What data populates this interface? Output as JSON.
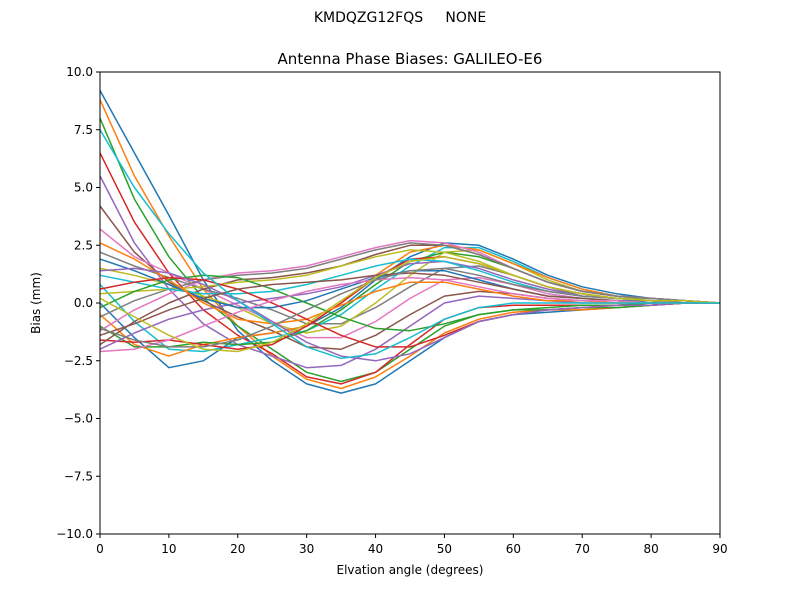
{
  "suptitle": "KMDQZG12FQS     NONE",
  "chart_data": {
    "type": "line",
    "title": "Antenna Phase Biases: GALILEO-E6",
    "xlabel": "Elvation angle (degrees)",
    "ylabel": "Bias (mm)",
    "xlim": [
      0,
      90
    ],
    "ylim": [
      -10,
      10
    ],
    "xticks": [
      0,
      10,
      20,
      30,
      40,
      50,
      60,
      70,
      80,
      90
    ],
    "yticks": [
      -10.0,
      -7.5,
      -5.0,
      -2.5,
      0.0,
      2.5,
      5.0,
      7.5,
      10.0
    ],
    "ytick_labels": [
      "−10.0",
      "−7.5",
      "−5.0",
      "−2.5",
      "0.0",
      "2.5",
      "5.0",
      "7.5",
      "10.0"
    ],
    "grid": false,
    "colors": [
      "#1f77b4",
      "#ff7f0e",
      "#2ca02c",
      "#d62728",
      "#9467bd",
      "#8c564b",
      "#e377c2",
      "#7f7f7f",
      "#bcbd22",
      "#17becf"
    ],
    "x": [
      0,
      5,
      10,
      15,
      20,
      25,
      30,
      35,
      40,
      45,
      50,
      55,
      60,
      65,
      70,
      75,
      80,
      85,
      90
    ],
    "series": [
      {
        "values": [
          9.2,
          6.5,
          3.8,
          1.0,
          -1.2,
          -2.5,
          -3.5,
          -3.9,
          -3.5,
          -2.5,
          -1.5,
          -0.8,
          -0.5,
          -0.4,
          -0.3,
          -0.2,
          -0.1,
          0.0,
          0.0
        ]
      },
      {
        "values": [
          8.8,
          5.5,
          2.9,
          0.6,
          -1.0,
          -2.3,
          -3.3,
          -3.7,
          -3.2,
          -2.3,
          -1.3,
          -0.7,
          -0.4,
          -0.3,
          -0.3,
          -0.2,
          -0.1,
          0.0,
          0.0
        ]
      },
      {
        "values": [
          8.0,
          4.5,
          2.0,
          0.2,
          -1.0,
          -2.0,
          -3.0,
          -3.4,
          -3.0,
          -2.0,
          -1.0,
          -0.5,
          -0.3,
          -0.3,
          -0.2,
          -0.2,
          -0.1,
          0.0,
          0.0
        ]
      },
      {
        "values": [
          6.5,
          3.5,
          1.3,
          -0.3,
          -1.4,
          -2.2,
          -3.2,
          -3.5,
          -3.0,
          -1.8,
          -0.7,
          -0.2,
          -0.1,
          -0.1,
          -0.1,
          -0.1,
          0.0,
          0.0,
          0.0
        ]
      },
      {
        "values": [
          5.5,
          2.6,
          0.6,
          -0.9,
          -1.8,
          -2.3,
          -2.8,
          -2.7,
          -2.0,
          -1.0,
          0.0,
          0.3,
          0.2,
          0.1,
          0.0,
          0.0,
          0.0,
          0.0,
          0.0
        ]
      },
      {
        "values": [
          4.2,
          2.2,
          0.9,
          0.1,
          -0.6,
          -1.2,
          -1.9,
          -2.0,
          -1.4,
          -0.5,
          0.3,
          0.5,
          0.4,
          0.2,
          0.1,
          0.1,
          0.0,
          0.0,
          0.0
        ]
      },
      {
        "values": [
          3.2,
          2.0,
          1.3,
          0.6,
          -0.1,
          -0.8,
          -1.5,
          -1.5,
          -0.8,
          0.2,
          1.0,
          1.1,
          0.8,
          0.4,
          0.2,
          0.1,
          0.1,
          0.0,
          0.0
        ]
      },
      {
        "values": [
          2.2,
          1.6,
          1.1,
          0.6,
          0.2,
          -0.3,
          -0.9,
          -0.9,
          -0.2,
          0.7,
          1.5,
          1.6,
          1.2,
          0.7,
          0.3,
          0.2,
          0.1,
          0.0,
          0.0
        ]
      },
      {
        "values": [
          1.5,
          1.2,
          0.8,
          0.3,
          -0.2,
          -0.9,
          -1.3,
          -1.0,
          0.0,
          1.2,
          2.2,
          2.3,
          1.7,
          1.0,
          0.5,
          0.3,
          0.1,
          0.1,
          0.0
        ]
      },
      {
        "values": [
          0.8,
          -0.8,
          -2.0,
          -2.1,
          -1.8,
          -1.5,
          -1.2,
          -0.5,
          0.6,
          1.6,
          2.4,
          2.4,
          1.8,
          1.1,
          0.6,
          0.3,
          0.2,
          0.1,
          0.0
        ]
      },
      {
        "values": [
          0.0,
          -1.5,
          -2.8,
          -2.5,
          -1.5,
          -1.3,
          -1.0,
          -0.2,
          1.0,
          2.0,
          2.6,
          2.5,
          1.9,
          1.2,
          0.7,
          0.4,
          0.2,
          0.1,
          0.0
        ]
      },
      {
        "values": [
          -0.5,
          -1.8,
          -2.3,
          -1.8,
          -1.5,
          -1.3,
          -1.0,
          0.0,
          1.2,
          2.2,
          2.5,
          2.3,
          1.7,
          1.1,
          0.6,
          0.3,
          0.2,
          0.1,
          0.0
        ]
      },
      {
        "values": [
          -1.0,
          -1.9,
          -1.9,
          -1.7,
          -1.8,
          -1.7,
          -1.2,
          -0.3,
          0.8,
          1.8,
          2.2,
          2.0,
          1.5,
          0.9,
          0.5,
          0.3,
          0.2,
          0.1,
          0.0
        ]
      },
      {
        "values": [
          -1.6,
          -1.7,
          -1.6,
          -1.8,
          -2.0,
          -1.8,
          -1.0,
          0.0,
          1.1,
          1.9,
          2.0,
          1.7,
          1.2,
          0.7,
          0.4,
          0.2,
          0.1,
          0.1,
          0.0
        ]
      },
      {
        "values": [
          -2.0,
          -1.3,
          -0.7,
          -0.3,
          0.0,
          0.2,
          0.4,
          0.7,
          1.2,
          1.7,
          1.8,
          1.5,
          1.0,
          0.6,
          0.3,
          0.2,
          0.1,
          0.0,
          0.0
        ]
      },
      {
        "values": [
          -1.8,
          -0.8,
          0.0,
          0.6,
          1.0,
          1.1,
          1.3,
          1.6,
          2.1,
          2.5,
          2.5,
          2.1,
          1.5,
          0.9,
          0.5,
          0.3,
          0.2,
          0.1,
          0.0
        ]
      },
      {
        "values": [
          -1.2,
          -0.3,
          0.4,
          1.0,
          1.3,
          1.4,
          1.6,
          2.0,
          2.4,
          2.7,
          2.6,
          2.2,
          1.5,
          0.9,
          0.5,
          0.3,
          0.2,
          0.1,
          0.0
        ]
      },
      {
        "values": [
          -0.6,
          0.1,
          0.6,
          1.0,
          1.2,
          1.3,
          1.5,
          1.9,
          2.3,
          2.6,
          2.5,
          2.1,
          1.5,
          0.9,
          0.5,
          0.3,
          0.2,
          0.1,
          0.0
        ]
      },
      {
        "values": [
          0.4,
          0.5,
          0.6,
          0.7,
          0.9,
          1.0,
          1.2,
          1.6,
          2.0,
          2.3,
          2.2,
          1.8,
          1.2,
          0.7,
          0.4,
          0.2,
          0.1,
          0.0,
          0.0
        ]
      },
      {
        "values": [
          1.2,
          0.9,
          0.6,
          0.4,
          0.4,
          0.5,
          0.8,
          1.2,
          1.6,
          1.9,
          1.8,
          1.4,
          0.9,
          0.5,
          0.3,
          0.2,
          0.1,
          0.0,
          0.0
        ]
      },
      {
        "values": [
          1.9,
          1.4,
          0.8,
          0.2,
          -0.2,
          -0.2,
          0.1,
          0.6,
          1.1,
          1.4,
          1.4,
          1.0,
          0.6,
          0.3,
          0.2,
          0.1,
          0.1,
          0.0,
          0.0
        ]
      },
      {
        "values": [
          2.6,
          1.9,
          1.0,
          0.0,
          -0.7,
          -0.9,
          -0.7,
          -0.1,
          0.5,
          0.9,
          0.9,
          0.6,
          0.3,
          0.1,
          0.1,
          0.0,
          0.0,
          0.0,
          0.0
        ]
      },
      {
        "values": [
          -0.2,
          0.5,
          1.0,
          1.2,
          1.1,
          0.6,
          0.0,
          -0.6,
          -1.1,
          -1.2,
          -0.9,
          -0.5,
          -0.3,
          -0.2,
          -0.1,
          -0.1,
          0.0,
          0.0,
          0.0
        ]
      },
      {
        "values": [
          0.6,
          0.9,
          1.1,
          1.0,
          0.6,
          0.0,
          -0.7,
          -1.4,
          -1.9,
          -1.9,
          -1.4,
          -0.8,
          -0.5,
          -0.3,
          -0.2,
          -0.1,
          -0.1,
          0.0,
          0.0
        ]
      },
      {
        "values": [
          1.4,
          1.5,
          1.3,
          0.8,
          0.1,
          -0.8,
          -1.7,
          -2.3,
          -2.5,
          -2.2,
          -1.5,
          -0.8,
          -0.5,
          -0.3,
          -0.2,
          -0.1,
          -0.1,
          0.0,
          0.0
        ]
      },
      {
        "values": [
          -1.4,
          -0.9,
          -0.3,
          0.2,
          0.6,
          0.8,
          0.9,
          1.0,
          1.2,
          1.3,
          1.2,
          0.9,
          0.6,
          0.3,
          0.2,
          0.1,
          0.0,
          0.0,
          0.0
        ]
      },
      {
        "values": [
          -2.1,
          -2.0,
          -1.6,
          -1.0,
          -0.4,
          0.1,
          0.5,
          0.8,
          1.0,
          1.1,
          1.0,
          0.7,
          0.4,
          0.2,
          0.1,
          0.1,
          0.0,
          0.0,
          0.0
        ]
      },
      {
        "values": [
          -1.1,
          -1.6,
          -1.9,
          -1.9,
          -1.6,
          -1.0,
          -0.3,
          0.4,
          1.0,
          1.4,
          1.5,
          1.2,
          0.8,
          0.5,
          0.3,
          0.2,
          0.1,
          0.0,
          0.0
        ]
      },
      {
        "values": [
          0.2,
          -0.6,
          -1.4,
          -2.0,
          -2.1,
          -1.7,
          -0.9,
          0.1,
          1.1,
          1.8,
          2.0,
          1.7,
          1.2,
          0.7,
          0.4,
          0.2,
          0.1,
          0.1,
          0.0
        ]
      },
      {
        "values": [
          7.5,
          5.0,
          3.0,
          1.3,
          0.1,
          -0.9,
          -1.9,
          -2.4,
          -2.2,
          -1.5,
          -0.7,
          -0.2,
          0.0,
          0.0,
          0.0,
          0.0,
          0.0,
          0.0,
          0.0
        ]
      }
    ]
  }
}
